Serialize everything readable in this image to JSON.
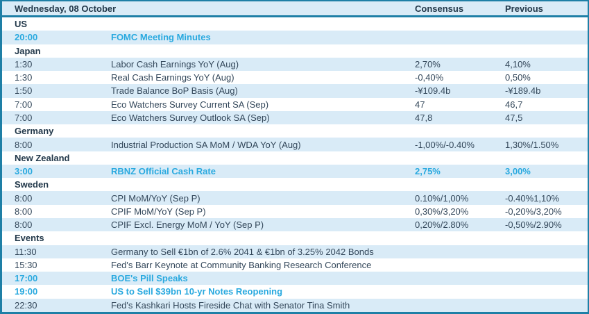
{
  "table": {
    "title": "Wednesday, 08 October",
    "columns": {
      "consensus": "Consensus",
      "previous": "Previous"
    },
    "colors": {
      "border_teal": "#1e7fa6",
      "stripe_blue": "#d9ebf7",
      "highlight_cyan": "#29a9df",
      "text_navy": "#22384a",
      "text_body": "#33475a"
    },
    "rows": [
      {
        "type": "section",
        "label": "US"
      },
      {
        "type": "event",
        "time": "20:00",
        "event": "FOMC Meeting Minutes",
        "consensus": "",
        "previous": "",
        "highlight": true
      },
      {
        "type": "section",
        "label": "Japan"
      },
      {
        "type": "event",
        "time": "1:30",
        "event": "Labor Cash Earnings YoY (Aug)",
        "consensus": "2,70%",
        "previous": "4,10%"
      },
      {
        "type": "event",
        "time": "1:30",
        "event": "Real Cash Earnings YoY (Aug)",
        "consensus": "-0,40%",
        "previous": "0,50%"
      },
      {
        "type": "event",
        "time": "1:50",
        "event": "Trade Balance BoP Basis (Aug)",
        "consensus": "-¥109.4b",
        "previous": "-¥189.4b"
      },
      {
        "type": "event",
        "time": "7:00",
        "event": "Eco Watchers Survey Current SA (Sep)",
        "consensus": "47",
        "previous": "46,7"
      },
      {
        "type": "event",
        "time": "7:00",
        "event": "Eco Watchers Survey Outlook SA (Sep)",
        "consensus": "47,8",
        "previous": "47,5"
      },
      {
        "type": "section",
        "label": "Germany"
      },
      {
        "type": "event",
        "time": "8:00",
        "event": "Industrial Production SA MoM / WDA YoY (Aug)",
        "consensus": "-1,00%/-0.40%",
        "previous": "1,30%/1.50%"
      },
      {
        "type": "section",
        "label": "New Zealand"
      },
      {
        "type": "event",
        "time": "3:00",
        "event": "RBNZ Official Cash Rate",
        "consensus": "2,75%",
        "previous": "3,00%",
        "highlight": true
      },
      {
        "type": "section",
        "label": "Sweden"
      },
      {
        "type": "event",
        "time": "8:00",
        "event": "CPI MoM/YoY (Sep P)",
        "consensus": "0.10%/1,00%",
        "previous": "-0.40%1,10%"
      },
      {
        "type": "event",
        "time": "8:00",
        "event": "CPIF MoM/YoY (Sep P)",
        "consensus": "0,30%/3,20%",
        "previous": "-0,20%/3,20%"
      },
      {
        "type": "event",
        "time": "8:00",
        "event": "CPIF Excl. Energy MoM / YoY (Sep P)",
        "consensus": "0,20%/2.80%",
        "previous": "-0,50%/2.90%"
      },
      {
        "type": "section",
        "label": "Events"
      },
      {
        "type": "event",
        "time": "11:30",
        "event": "Germany to Sell €1bn of 2.6% 2041 & €1bn of 3.25% 2042 Bonds",
        "consensus": "",
        "previous": ""
      },
      {
        "type": "event",
        "time": "15:30",
        "event": "Fed's Barr Keynote at Community Banking Research Conference",
        "consensus": "",
        "previous": ""
      },
      {
        "type": "event",
        "time": "17:00",
        "event": "BOE's Pill Speaks",
        "consensus": "",
        "previous": "",
        "highlight": true
      },
      {
        "type": "event",
        "time": "19:00",
        "event": "US to Sell $39bn 10-yr Notes Reopening",
        "consensus": "",
        "previous": "",
        "highlight": true
      },
      {
        "type": "event",
        "time": "22:30",
        "event": "Fed's Kashkari Hosts Fireside Chat with Senator Tina Smith",
        "consensus": "",
        "previous": ""
      }
    ]
  }
}
